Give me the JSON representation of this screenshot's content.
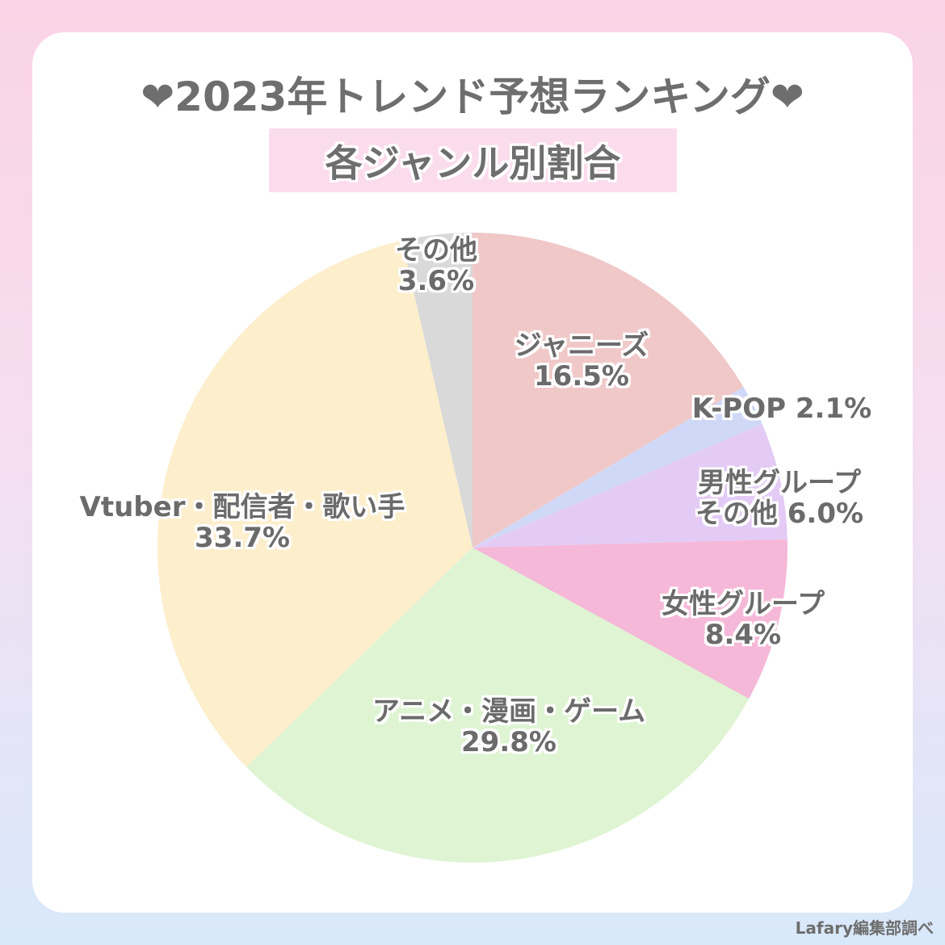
{
  "title": "❤2023年トレンド予想ランキング❤",
  "subtitle": "各ジャンル別割合",
  "credit": "Lafary編集部調べ",
  "chart_data": {
    "type": "pie",
    "title": "❤2023年トレンド予想ランキング❤",
    "subtitle": "各ジャンル別割合",
    "start_angle": "12 o'clock, clockwise",
    "slices": [
      {
        "name": "ジャニーズ",
        "value": 16.5,
        "label_lines": [
          "ジャニーズ",
          "16.5%"
        ],
        "color": "#f0c8c8"
      },
      {
        "name": "K-POP",
        "value": 2.1,
        "label_lines": [
          "K-POP 2.1%"
        ],
        "color": "#cfd9f7"
      },
      {
        "name": "男性グループ その他",
        "value": 6.0,
        "label_lines": [
          "男性グループ",
          "その他 6.0%"
        ],
        "color": "#e3cbf5"
      },
      {
        "name": "女性グループ",
        "value": 8.4,
        "label_lines": [
          "女性グループ",
          "8.4%"
        ],
        "color": "#f5b8d8"
      },
      {
        "name": "アニメ・漫画・ゲーム",
        "value": 29.8,
        "label_lines": [
          "アニメ・漫画・ゲーム",
          "29.8%"
        ],
        "color": "#def4d2"
      },
      {
        "name": "Vtuber・配信者・歌い手",
        "value": 33.7,
        "label_lines": [
          "Vtuber・配信者・歌い手",
          "33.7%"
        ],
        "color": "#fdeecc"
      },
      {
        "name": "その他",
        "value": 3.6,
        "label_lines": [
          "その他",
          "3.6%"
        ],
        "color": "#d9d9d9"
      }
    ]
  }
}
